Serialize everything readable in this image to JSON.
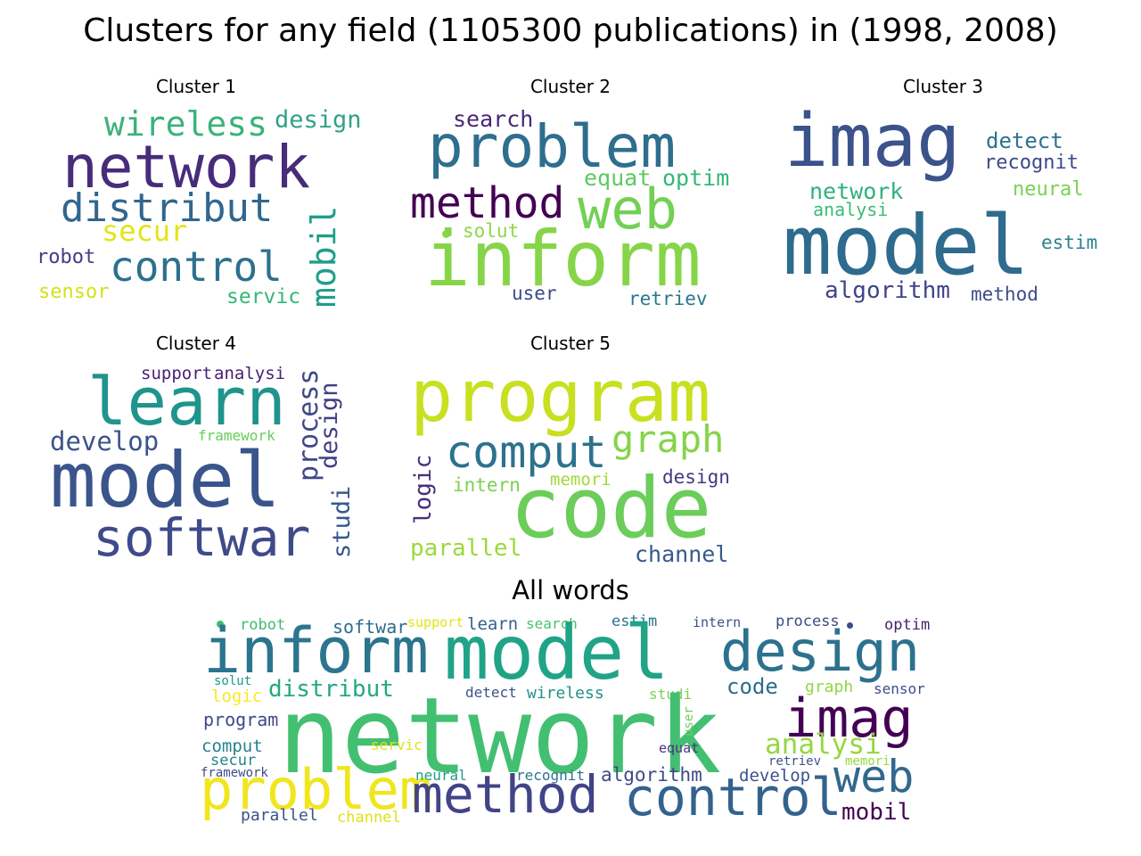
{
  "title": "Clusters for any field (1105300 publications) in (1998, 2008)",
  "panels": [
    {
      "title": "Cluster 1",
      "words": [
        {
          "text": "wireless",
          "color": "#3bb27a"
        },
        {
          "text": "design",
          "color": "#2fa385"
        },
        {
          "text": "network",
          "color": "#472c7a"
        },
        {
          "text": "distribut",
          "color": "#31668e"
        },
        {
          "text": "secur",
          "color": "#e3e419"
        },
        {
          "text": "mobil",
          "color": "#1f9e89"
        },
        {
          "text": "robot",
          "color": "#433d84"
        },
        {
          "text": "control",
          "color": "#2d708e"
        },
        {
          "text": "sensor",
          "color": "#d4e21a"
        },
        {
          "text": "servic",
          "color": "#35b779"
        }
      ]
    },
    {
      "title": "Cluster 2",
      "words": [
        {
          "text": "search",
          "color": "#482878"
        },
        {
          "text": "problem",
          "color": "#2e6e8e"
        },
        {
          "text": "equat",
          "color": "#5ec962"
        },
        {
          "text": "optim",
          "color": "#35b779"
        },
        {
          "text": "method",
          "color": "#440154"
        },
        {
          "text": "web",
          "color": "#73d055"
        },
        {
          "text": "solut",
          "color": "#90d743"
        },
        {
          "text": "inform",
          "color": "#86d549"
        },
        {
          "text": "user",
          "color": "#3e4a89"
        },
        {
          "text": "retriev",
          "color": "#2a788e"
        }
      ]
    },
    {
      "title": "Cluster 3",
      "words": [
        {
          "text": "imag",
          "color": "#3b528b"
        },
        {
          "text": "detect",
          "color": "#2c738e"
        },
        {
          "text": "recognit",
          "color": "#3e4a89"
        },
        {
          "text": "network",
          "color": "#2db27d"
        },
        {
          "text": "neural",
          "color": "#7ad151"
        },
        {
          "text": "analysi",
          "color": "#3bbb75"
        },
        {
          "text": "model",
          "color": "#2e6b8e"
        },
        {
          "text": "estim",
          "color": "#2c838e"
        },
        {
          "text": "algorithm",
          "color": "#414487"
        },
        {
          "text": "method",
          "color": "#3e4c8a"
        }
      ]
    },
    {
      "title": "Cluster 4",
      "words": [
        {
          "text": "support",
          "color": "#482173"
        },
        {
          "text": "analysi",
          "color": "#481f70"
        },
        {
          "text": "learn",
          "color": "#1f948c"
        },
        {
          "text": "process",
          "color": "#3f4889"
        },
        {
          "text": "design",
          "color": "#433e85"
        },
        {
          "text": "develop",
          "color": "#3b528b"
        },
        {
          "text": "framework",
          "color": "#67cc5c"
        },
        {
          "text": "model",
          "color": "#3a548c"
        },
        {
          "text": "studi",
          "color": "#38588c"
        },
        {
          "text": "softwar",
          "color": "#3e4a89"
        }
      ]
    },
    {
      "title": "Cluster 5",
      "words": [
        {
          "text": "program",
          "color": "#c8e020"
        },
        {
          "text": "comput",
          "color": "#2c728e"
        },
        {
          "text": "graph",
          "color": "#84d44b"
        },
        {
          "text": "logic",
          "color": "#472f7d"
        },
        {
          "text": "intern",
          "color": "#7ad151"
        },
        {
          "text": "memori",
          "color": "#a0da39"
        },
        {
          "text": "design",
          "color": "#443983"
        },
        {
          "text": "code",
          "color": "#6ccd5a"
        },
        {
          "text": "parallel",
          "color": "#9bd93c"
        },
        {
          "text": "channel",
          "color": "#38598c"
        }
      ]
    }
  ],
  "all_words": {
    "title": "All words",
    "words": [
      {
        "text": "robot",
        "color": "#3dbc74"
      },
      {
        "text": "softwar",
        "color": "#2f6c8e"
      },
      {
        "text": "support",
        "color": "#e2e418"
      },
      {
        "text": "learn",
        "color": "#35608d"
      },
      {
        "text": "search",
        "color": "#4ac16d"
      },
      {
        "text": "estim",
        "color": "#2c738e"
      },
      {
        "text": "intern",
        "color": "#3b528b"
      },
      {
        "text": "process",
        "color": "#3e4a89"
      },
      {
        "text": "optim",
        "color": "#481f70"
      },
      {
        "text": "inform",
        "color": "#2b758e"
      },
      {
        "text": "model",
        "color": "#20a386"
      },
      {
        "text": "design",
        "color": "#2c728e"
      },
      {
        "text": "solut",
        "color": "#1f968b"
      },
      {
        "text": "distribut",
        "color": "#22a884"
      },
      {
        "text": "logic",
        "color": "#fde725"
      },
      {
        "text": "detect",
        "color": "#3b528b"
      },
      {
        "text": "wireless",
        "color": "#21918c"
      },
      {
        "text": "studi",
        "color": "#7ad151"
      },
      {
        "text": "code",
        "color": "#2e6d8e"
      },
      {
        "text": "graph",
        "color": "#90d743"
      },
      {
        "text": "sensor",
        "color": "#3e4c8a"
      },
      {
        "text": "program",
        "color": "#3f4889"
      },
      {
        "text": "network",
        "color": "#43bf71"
      },
      {
        "text": "imag",
        "color": "#440154"
      },
      {
        "text": "user",
        "color": "#6ece58"
      },
      {
        "text": "comput",
        "color": "#26828e"
      },
      {
        "text": "servic",
        "color": "#dde318"
      },
      {
        "text": "analysi",
        "color": "#95d840"
      },
      {
        "text": "secur",
        "color": "#25838e"
      },
      {
        "text": "equat",
        "color": "#46337e"
      },
      {
        "text": "retriev",
        "color": "#3b528b"
      },
      {
        "text": "memori",
        "color": "#95d840"
      },
      {
        "text": "framework",
        "color": "#3e4a89"
      },
      {
        "text": "problem",
        "color": "#f1e51d"
      },
      {
        "text": "neural",
        "color": "#1f9e89"
      },
      {
        "text": "recognit",
        "color": "#2c728e"
      },
      {
        "text": "algorithm",
        "color": "#3e4a89"
      },
      {
        "text": "develop",
        "color": "#3b528b"
      },
      {
        "text": "web",
        "color": "#31688e"
      },
      {
        "text": "method",
        "color": "#414487"
      },
      {
        "text": "control",
        "color": "#33638d"
      },
      {
        "text": "mobil",
        "color": "#440154"
      },
      {
        "text": "parallel",
        "color": "#3b528b"
      },
      {
        "text": "channel",
        "color": "#dde318"
      }
    ]
  }
}
